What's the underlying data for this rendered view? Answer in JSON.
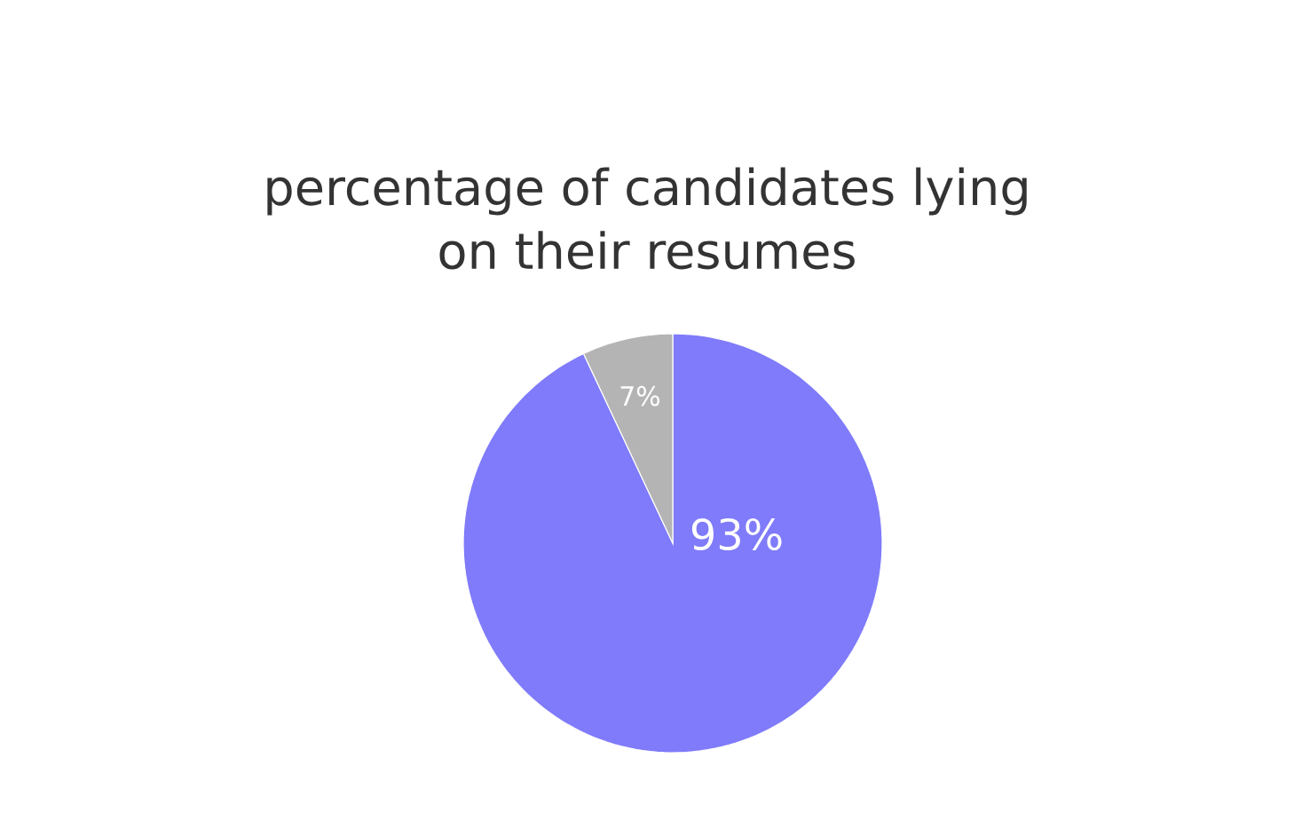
{
  "chart_data": {
    "type": "pie",
    "title": "percentage of candidates lying on their resumes",
    "categories": [
      null,
      null
    ],
    "values": [
      93,
      7
    ],
    "colors": [
      "#7f7bfa",
      "#b4b4b4"
    ],
    "value_labels": [
      "93%",
      "7%"
    ]
  }
}
